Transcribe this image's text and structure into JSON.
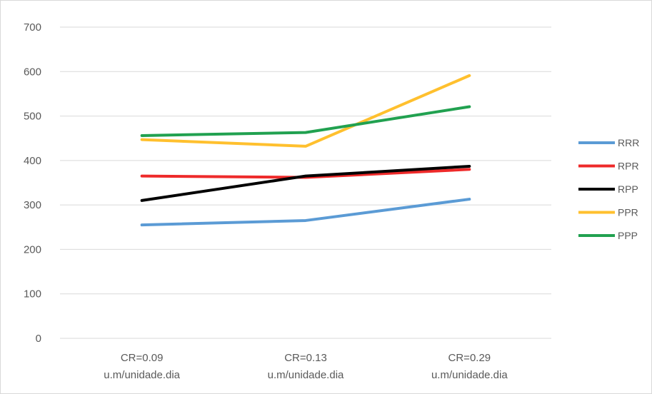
{
  "chart_data": {
    "type": "line",
    "title": "",
    "xlabel": "",
    "ylabel": "",
    "categories": [
      [
        "CR=0.09",
        "u.m/unidade.dia"
      ],
      [
        "CR=0.13",
        "u.m/unidade.dia"
      ],
      [
        "CR=0.29",
        "u.m/unidade.dia"
      ]
    ],
    "ylim": [
      0,
      700
    ],
    "yticks": [
      0,
      100,
      200,
      300,
      400,
      500,
      600,
      700
    ],
    "grid": true,
    "legend_position": "right",
    "series": [
      {
        "name": "RRR",
        "color": "#5b9bd5",
        "values": [
          255,
          265,
          313
        ]
      },
      {
        "name": "RPR",
        "color": "#ee2a2a",
        "values": [
          365,
          362,
          380
        ]
      },
      {
        "name": "RPP",
        "color": "#000000",
        "values": [
          310,
          365,
          387
        ]
      },
      {
        "name": "PPR",
        "color": "#ffc02e",
        "values": [
          447,
          432,
          591
        ]
      },
      {
        "name": "PPP",
        "color": "#21a150",
        "values": [
          456,
          463,
          521
        ]
      }
    ]
  }
}
